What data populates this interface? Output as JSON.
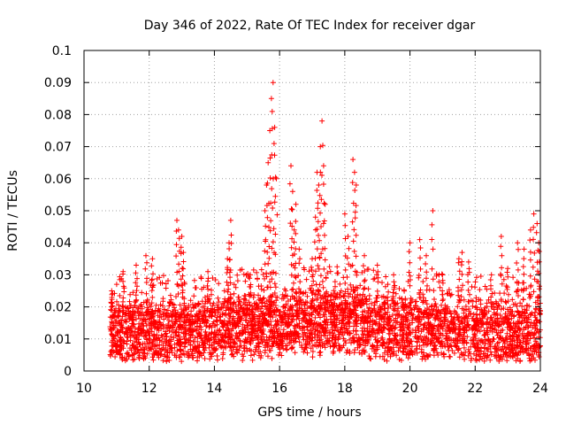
{
  "chart_data": {
    "type": "scatter",
    "title": "Day 346 of 2022, Rate Of TEC Index for receiver dgar",
    "xlabel": "GPS time / hours",
    "ylabel": "ROTI / TECUs",
    "xlim": [
      10,
      24
    ],
    "ylim": [
      0,
      0.1
    ],
    "xticks": [
      "10",
      "12",
      "14",
      "16",
      "18",
      "20",
      "22",
      "24"
    ],
    "yticks": [
      "0",
      "0.01",
      "0.02",
      "0.03",
      "0.04",
      "0.05",
      "0.06",
      "0.07",
      "0.08",
      "0.09",
      "0.1"
    ],
    "grid": true,
    "marker": "+",
    "marker_color": "#ff0000",
    "series": [
      {
        "name": "ROTI",
        "x_start": 10.8,
        "x_end": 24.0,
        "typical_range": [
          0.004,
          0.025
        ],
        "baseline_profile": [
          [
            10.8,
            0.012
          ],
          [
            12.0,
            0.012
          ],
          [
            13.0,
            0.012
          ],
          [
            14.0,
            0.013
          ],
          [
            15.0,
            0.014
          ],
          [
            16.0,
            0.014
          ],
          [
            17.0,
            0.015
          ],
          [
            18.0,
            0.015
          ],
          [
            19.0,
            0.014
          ],
          [
            20.0,
            0.013
          ],
          [
            21.0,
            0.013
          ],
          [
            22.0,
            0.012
          ],
          [
            23.0,
            0.012
          ],
          [
            24.0,
            0.012
          ]
        ],
        "peak_points": [
          {
            "x": 10.85,
            "y": 0.025
          },
          {
            "x": 11.2,
            "y": 0.031
          },
          {
            "x": 11.6,
            "y": 0.033
          },
          {
            "x": 11.9,
            "y": 0.036
          },
          {
            "x": 12.1,
            "y": 0.035
          },
          {
            "x": 12.85,
            "y": 0.047
          },
          {
            "x": 12.9,
            "y": 0.044
          },
          {
            "x": 13.0,
            "y": 0.042
          },
          {
            "x": 13.05,
            "y": 0.037
          },
          {
            "x": 13.8,
            "y": 0.031
          },
          {
            "x": 14.5,
            "y": 0.047
          },
          {
            "x": 14.45,
            "y": 0.04
          },
          {
            "x": 14.4,
            "y": 0.035
          },
          {
            "x": 15.1,
            "y": 0.03
          },
          {
            "x": 15.55,
            "y": 0.05
          },
          {
            "x": 15.6,
            "y": 0.058
          },
          {
            "x": 15.65,
            "y": 0.065
          },
          {
            "x": 15.7,
            "y": 0.075
          },
          {
            "x": 15.75,
            "y": 0.085
          },
          {
            "x": 15.8,
            "y": 0.09
          },
          {
            "x": 15.85,
            "y": 0.076
          },
          {
            "x": 15.9,
            "y": 0.06
          },
          {
            "x": 16.35,
            "y": 0.064
          },
          {
            "x": 16.4,
            "y": 0.056
          },
          {
            "x": 16.45,
            "y": 0.044
          },
          {
            "x": 16.5,
            "y": 0.052
          },
          {
            "x": 16.6,
            "y": 0.038
          },
          {
            "x": 17.0,
            "y": 0.035
          },
          {
            "x": 17.15,
            "y": 0.062
          },
          {
            "x": 17.2,
            "y": 0.058
          },
          {
            "x": 17.25,
            "y": 0.07
          },
          {
            "x": 17.3,
            "y": 0.078
          },
          {
            "x": 17.35,
            "y": 0.064
          },
          {
            "x": 17.4,
            "y": 0.052
          },
          {
            "x": 17.1,
            "y": 0.048
          },
          {
            "x": 18.0,
            "y": 0.049
          },
          {
            "x": 18.1,
            "y": 0.042
          },
          {
            "x": 18.25,
            "y": 0.066
          },
          {
            "x": 18.3,
            "y": 0.062
          },
          {
            "x": 18.35,
            "y": 0.058
          },
          {
            "x": 18.6,
            "y": 0.036
          },
          {
            "x": 19.0,
            "y": 0.033
          },
          {
            "x": 19.5,
            "y": 0.03
          },
          {
            "x": 20.0,
            "y": 0.04
          },
          {
            "x": 20.3,
            "y": 0.041
          },
          {
            "x": 20.5,
            "y": 0.036
          },
          {
            "x": 20.7,
            "y": 0.05
          },
          {
            "x": 21.0,
            "y": 0.03
          },
          {
            "x": 21.5,
            "y": 0.035
          },
          {
            "x": 21.6,
            "y": 0.037
          },
          {
            "x": 21.8,
            "y": 0.034
          },
          {
            "x": 22.5,
            "y": 0.03
          },
          {
            "x": 22.8,
            "y": 0.042
          },
          {
            "x": 23.0,
            "y": 0.032
          },
          {
            "x": 23.3,
            "y": 0.04
          },
          {
            "x": 23.5,
            "y": 0.038
          },
          {
            "x": 23.7,
            "y": 0.044
          },
          {
            "x": 23.8,
            "y": 0.049
          },
          {
            "x": 23.9,
            "y": 0.046
          },
          {
            "x": 23.95,
            "y": 0.04
          }
        ]
      }
    ]
  }
}
